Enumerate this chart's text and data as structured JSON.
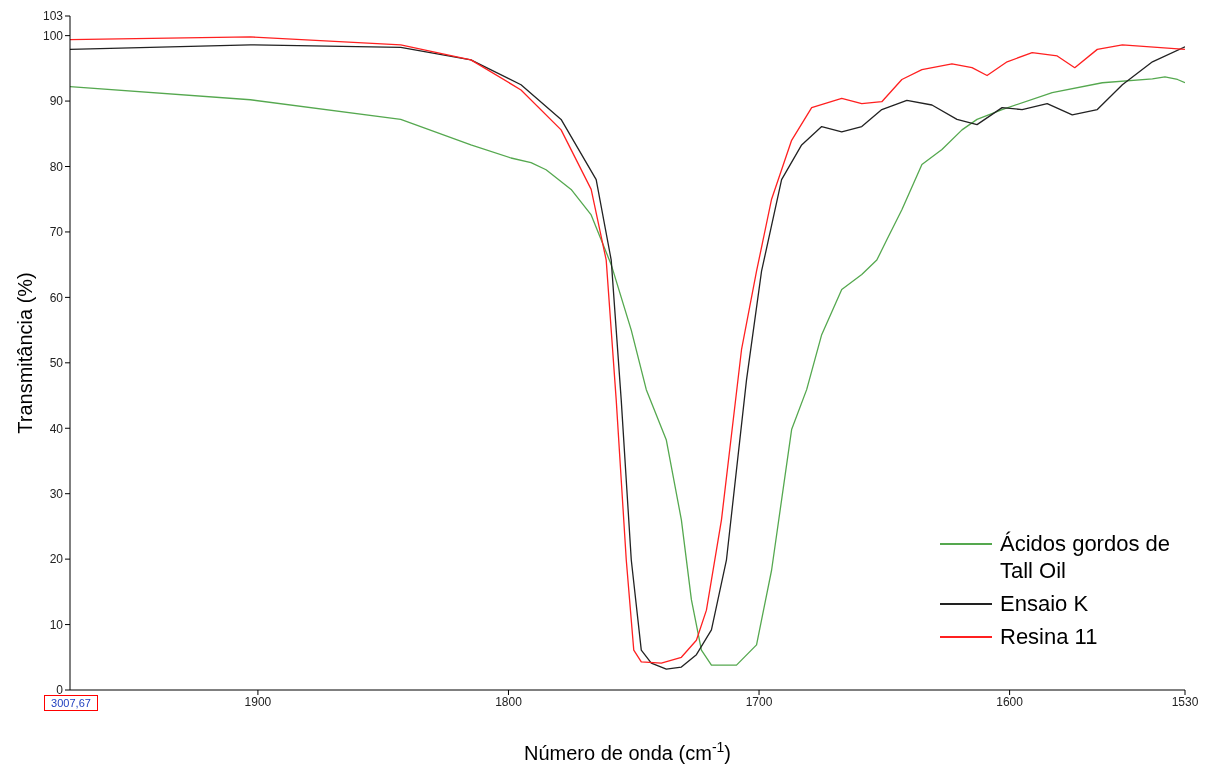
{
  "chart_data": {
    "type": "line",
    "xlabel": "Número de onda (cm$^{-1}$)",
    "ylabel": "Transmitância (%)",
    "xlim": [
      1975,
      1530
    ],
    "xticks": [
      1900,
      1800,
      1700,
      1600,
      1530
    ],
    "ylim": [
      0,
      103
    ],
    "yticks": [
      0,
      10,
      20,
      30,
      40,
      50,
      60,
      70,
      80,
      90,
      100,
      103
    ],
    "grid": false,
    "legend": "bottom right",
    "annotations": [
      "3007,67"
    ],
    "series": [
      {
        "name": "Ácidos gordos de Tall Oil",
        "color": "#55a84f",
        "x": [
          1975,
          1903,
          1843,
          1815,
          1799,
          1791,
          1785,
          1775,
          1767,
          1759,
          1751,
          1745,
          1737,
          1731,
          1727,
          1723,
          1719,
          1709,
          1701,
          1695,
          1687,
          1681,
          1675,
          1667,
          1659,
          1653,
          1649,
          1643,
          1635,
          1627,
          1619,
          1613,
          1603,
          1583,
          1563,
          1543,
          1538,
          1533,
          1530
        ],
        "values": [
          92.2,
          90.2,
          87.2,
          83.3,
          81.3,
          80.6,
          79.5,
          76.5,
          72.6,
          65,
          55,
          45.9,
          38.2,
          26,
          13.8,
          6.1,
          3.8,
          3.8,
          6.9,
          18.3,
          39.8,
          45.9,
          54.3,
          61.2,
          63.5,
          65.7,
          68.8,
          73.4,
          80.3,
          82.6,
          85.6,
          87.2,
          88.7,
          91.3,
          92.8,
          93.4,
          93.7,
          93.3,
          92.8
        ]
      },
      {
        "name": "Ensaio K",
        "color": "#222222",
        "x": [
          1975,
          1903,
          1843,
          1815,
          1795,
          1779,
          1765,
          1759,
          1755,
          1751,
          1747,
          1743,
          1737,
          1731,
          1725,
          1719,
          1713,
          1705,
          1699,
          1691,
          1683,
          1675,
          1667,
          1659,
          1651,
          1641,
          1631,
          1621,
          1613,
          1603,
          1595,
          1585,
          1575,
          1565,
          1555,
          1543,
          1530
        ],
        "values": [
          97.9,
          98.6,
          98.2,
          96.3,
          92.5,
          87.2,
          78,
          65.7,
          44.3,
          19.9,
          6.1,
          4.1,
          3.2,
          3.5,
          5.4,
          9.2,
          19.9,
          47.4,
          64,
          78,
          83.3,
          86.1,
          85.3,
          86.1,
          88.7,
          90.1,
          89.4,
          87.2,
          86.4,
          89,
          88.7,
          89.6,
          87.9,
          88.7,
          92.5,
          96,
          98.3
        ]
      },
      {
        "name": "Resina 11",
        "color": "#ff2020",
        "x": [
          1975,
          1903,
          1843,
          1815,
          1795,
          1779,
          1767,
          1761,
          1757,
          1753,
          1750,
          1747,
          1739,
          1731,
          1725,
          1721,
          1715,
          1707,
          1701,
          1695,
          1687,
          1679,
          1667,
          1659,
          1651,
          1643,
          1635,
          1623,
          1615,
          1609,
          1601,
          1591,
          1581,
          1574,
          1565,
          1555,
          1530
        ],
        "values": [
          99.4,
          99.8,
          98.6,
          96.3,
          91.7,
          85.6,
          76.5,
          65.7,
          44.3,
          19.9,
          6.1,
          4.3,
          4.1,
          5,
          7.6,
          12.2,
          26,
          52,
          64,
          75,
          84,
          89,
          90.4,
          89.6,
          89.9,
          93.3,
          94.8,
          95.7,
          95.1,
          93.9,
          96,
          97.4,
          96.9,
          95.1,
          97.9,
          98.6,
          97.9
        ]
      }
    ]
  }
}
